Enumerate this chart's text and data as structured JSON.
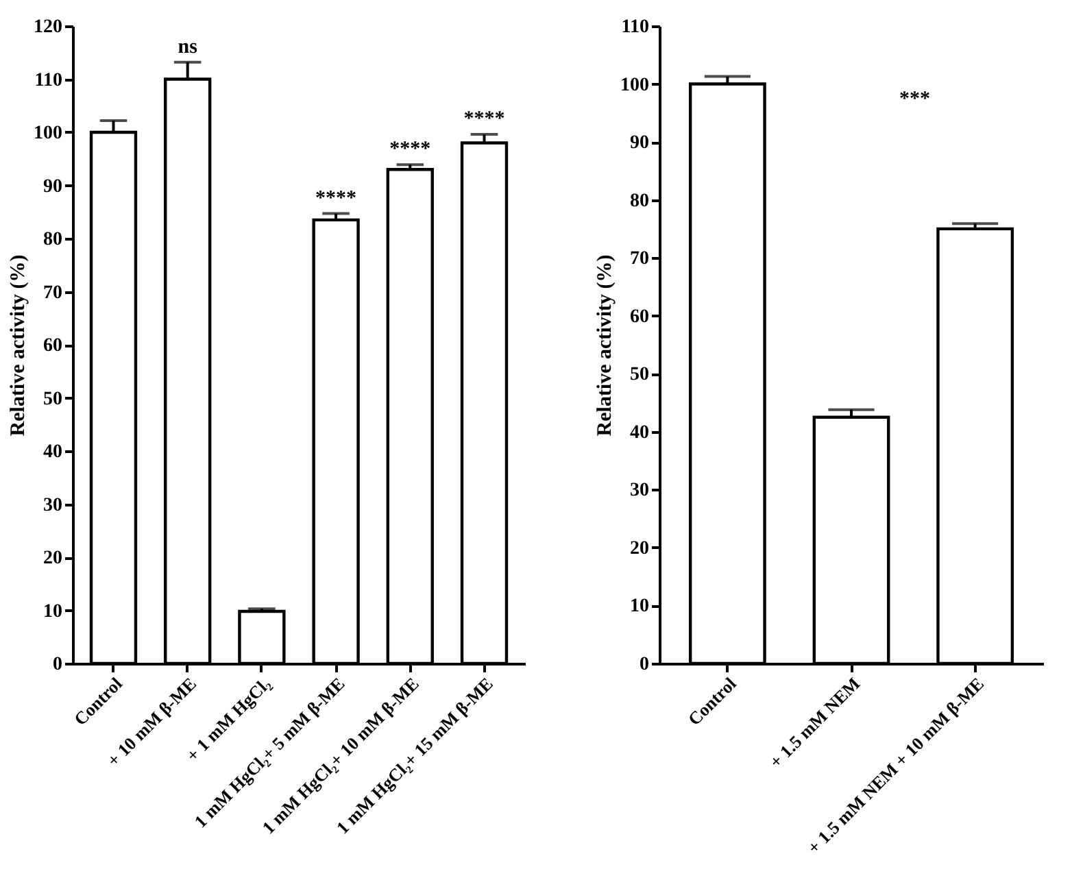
{
  "chart_data": [
    {
      "type": "bar",
      "ylabel": "Relative activity (%)",
      "categories": [
        "Control",
        "+ 10 mM β-ME",
        "+ 1 mM HgCl₂",
        "1 mM HgCl₂+ 5 mM β-ME",
        "1 mM HgCl₂+ 10 mM β-ME",
        "1 mM HgCl₂+ 15 mM β-ME"
      ],
      "values": [
        100,
        110,
        9.8,
        83.5,
        93,
        98
      ],
      "color": "#ffffff",
      "errors": [
        [
          100,
          102.2
        ],
        [
          110,
          113.2
        ],
        [
          9.8,
          10.3
        ],
        [
          83.5,
          84.7
        ],
        [
          93,
          93.9
        ],
        [
          98,
          99.6
        ]
      ],
      "ylim": [
        0,
        120
      ],
      "yticks": [
        0,
        10,
        20,
        30,
        40,
        50,
        60,
        70,
        80,
        90,
        100,
        110,
        120
      ],
      "grid": false,
      "value_labels": [
        null,
        "ns",
        null,
        "****",
        "****",
        "****"
      ]
    },
    {
      "type": "bar",
      "ylabel": "Relative activity (%)",
      "categories": [
        "Control",
        "+ 1.5 mM NEM",
        "+ 1.5 mM NEM + 10 mM β-ME"
      ],
      "values": [
        100,
        42.5,
        75
      ],
      "color": "#ffffff",
      "errors": [
        [
          100,
          101.3
        ],
        [
          42.5,
          43.8
        ],
        [
          75,
          75.9
        ]
      ],
      "ylim": [
        0,
        110
      ],
      "yticks": [
        0,
        10,
        20,
        30,
        40,
        50,
        60,
        70,
        80,
        90,
        100,
        110
      ],
      "grid": false,
      "annotations": [
        "***"
      ]
    }
  ]
}
